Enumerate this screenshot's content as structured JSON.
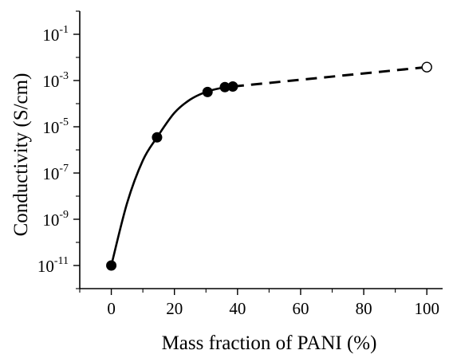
{
  "chart_data": {
    "type": "scatter",
    "title": "",
    "xlabel": "Mass fraction of PANI (%)",
    "ylabel": "Conductivity (S/cm)",
    "xlim": [
      -10,
      105
    ],
    "ylim": [
      1e-12,
      1
    ],
    "xscale": "linear",
    "yscale": "log",
    "xticks": [
      0,
      20,
      40,
      60,
      80,
      100
    ],
    "xtick_labels": [
      "0",
      "20",
      "40",
      "60",
      "80",
      "100"
    ],
    "ytick_labels": [
      {
        "base": "10",
        "exp": "-11",
        "value": 1e-11
      },
      {
        "base": "10",
        "exp": "-9",
        "value": 1e-09
      },
      {
        "base": "10",
        "exp": "-7",
        "value": 1e-07
      },
      {
        "base": "10",
        "exp": "-5",
        "value": 1e-05
      },
      {
        "base": "10",
        "exp": "-3",
        "value": 0.001
      },
      {
        "base": "10",
        "exp": "-1",
        "value": 0.1
      }
    ],
    "grid": false,
    "legend": "none",
    "series": [
      {
        "marker": "filled-circle",
        "x": [
          0,
          14.5,
          30.5,
          36,
          38.5
        ],
        "y": [
          1e-11,
          3.5e-06,
          0.00032,
          0.00052,
          0.00055
        ]
      },
      {
        "marker": "open-circle",
        "x": [
          100
        ],
        "y": [
          0.0038
        ]
      }
    ],
    "fit_curves": [
      {
        "style": "solid",
        "x": [
          0,
          5,
          10,
          14.5,
          20,
          25,
          30,
          35,
          38.5
        ],
        "y": [
          1e-11,
          5e-09,
          3.5e-07,
          3.5e-06,
          4e-05,
          0.00015,
          0.00032,
          0.00048,
          0.00055
        ]
      },
      {
        "style": "dashed",
        "x": [
          38.5,
          100
        ],
        "y": [
          0.00055,
          0.0038
        ]
      }
    ]
  }
}
